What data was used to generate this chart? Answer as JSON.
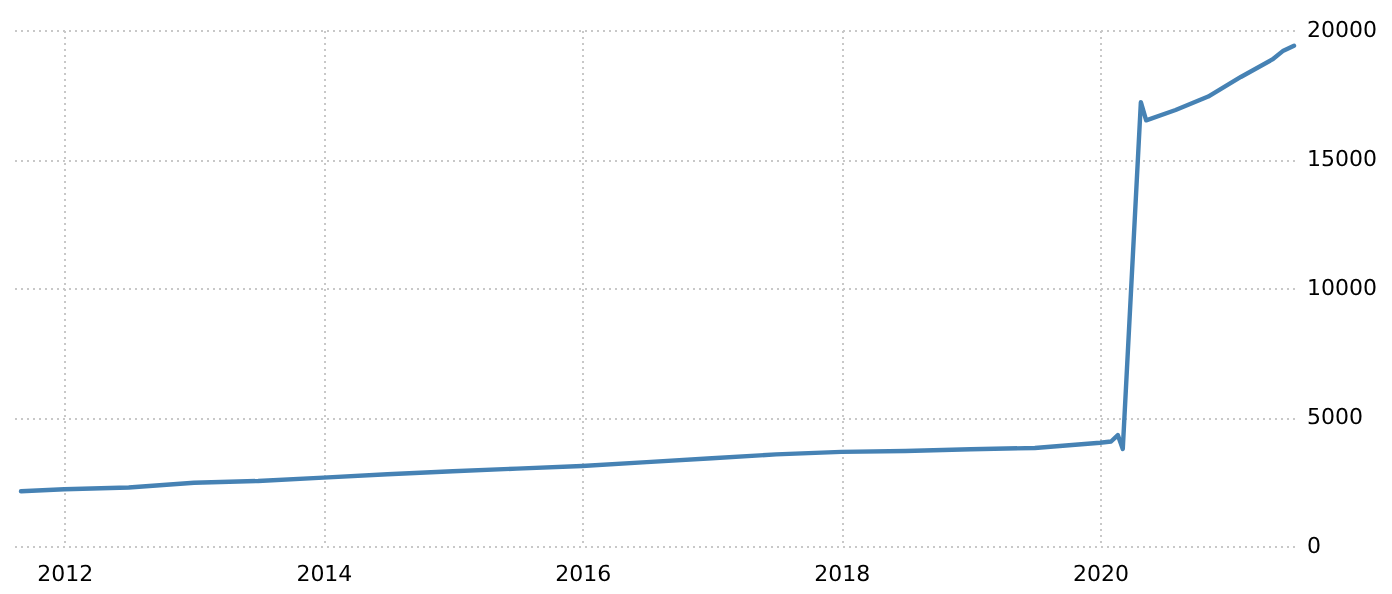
{
  "chart_data": {
    "type": "line",
    "x": [
      "2011-09",
      "2012-01",
      "2012-07",
      "2013-01",
      "2013-07",
      "2014-01",
      "2014-07",
      "2015-01",
      "2015-07",
      "2016-01",
      "2016-07",
      "2017-01",
      "2017-07",
      "2018-01",
      "2018-07",
      "2019-01",
      "2019-07",
      "2020-01",
      "2020-02",
      "2020-02-20",
      "2020-03-05",
      "2020-04-25",
      "2020-05-10",
      "2020-08",
      "2020-11",
      "2021-02",
      "2021-05",
      "2021-06",
      "2021-07"
    ],
    "series": [
      {
        "color": "#4682b4",
        "values": [
          2120,
          2200,
          2270,
          2450,
          2520,
          2650,
          2780,
          2900,
          3000,
          3100,
          3250,
          3400,
          3550,
          3650,
          3680,
          3750,
          3800,
          4000,
          4050,
          4300,
          3760,
          17200,
          16500,
          16900,
          17420,
          18180,
          18860,
          19200,
          19390
        ]
      }
    ],
    "xlim": [
      "2011-08",
      "2021-07"
    ],
    "xticks": [
      "2012",
      "2014",
      "2016",
      "2018",
      "2020"
    ],
    "ylim": [
      0,
      20000
    ],
    "yticks": [
      0,
      5000,
      10000,
      15000,
      20000
    ],
    "grid": true,
    "line_style": "solid",
    "marker": "none",
    "legend": false
  }
}
